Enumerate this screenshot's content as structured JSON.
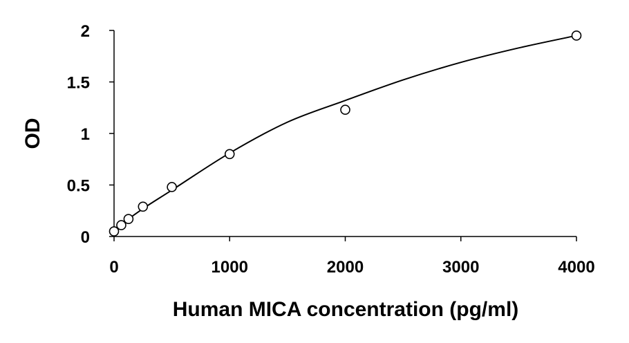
{
  "chart_data": {
    "type": "scatter",
    "title": "",
    "xlabel": "Human MICA concentration (pg/ml)",
    "ylabel": "OD",
    "xlim": [
      0,
      4000
    ],
    "ylim": [
      0,
      2
    ],
    "xticks": [
      0,
      1000,
      2000,
      3000,
      4000
    ],
    "xtick_labels": [
      "0",
      "1000",
      "2000",
      "3000",
      "4000"
    ],
    "yticks": [
      0,
      0.5,
      1,
      1.5,
      2
    ],
    "ytick_labels": [
      "0",
      "0.5",
      "1",
      "1.5",
      "2"
    ],
    "grid": false,
    "legend": "none",
    "series": [
      {
        "marker": "open-circle",
        "x": [
          0,
          62.5,
          125,
          250,
          500,
          1000,
          2000,
          4000
        ],
        "y": [
          0.05,
          0.11,
          0.17,
          0.29,
          0.48,
          0.8,
          1.23,
          1.95
        ]
      }
    ],
    "fit_curve": {
      "type": "smooth",
      "x": [
        0,
        250,
        500,
        1000,
        1500,
        2000,
        2500,
        3000,
        3500,
        4000
      ],
      "y": [
        0.07,
        0.27,
        0.45,
        0.81,
        1.11,
        1.32,
        1.52,
        1.69,
        1.83,
        1.95
      ]
    },
    "colors": {
      "marker_stroke": "#000000",
      "curve": "#000000",
      "axis": "#000000"
    }
  }
}
